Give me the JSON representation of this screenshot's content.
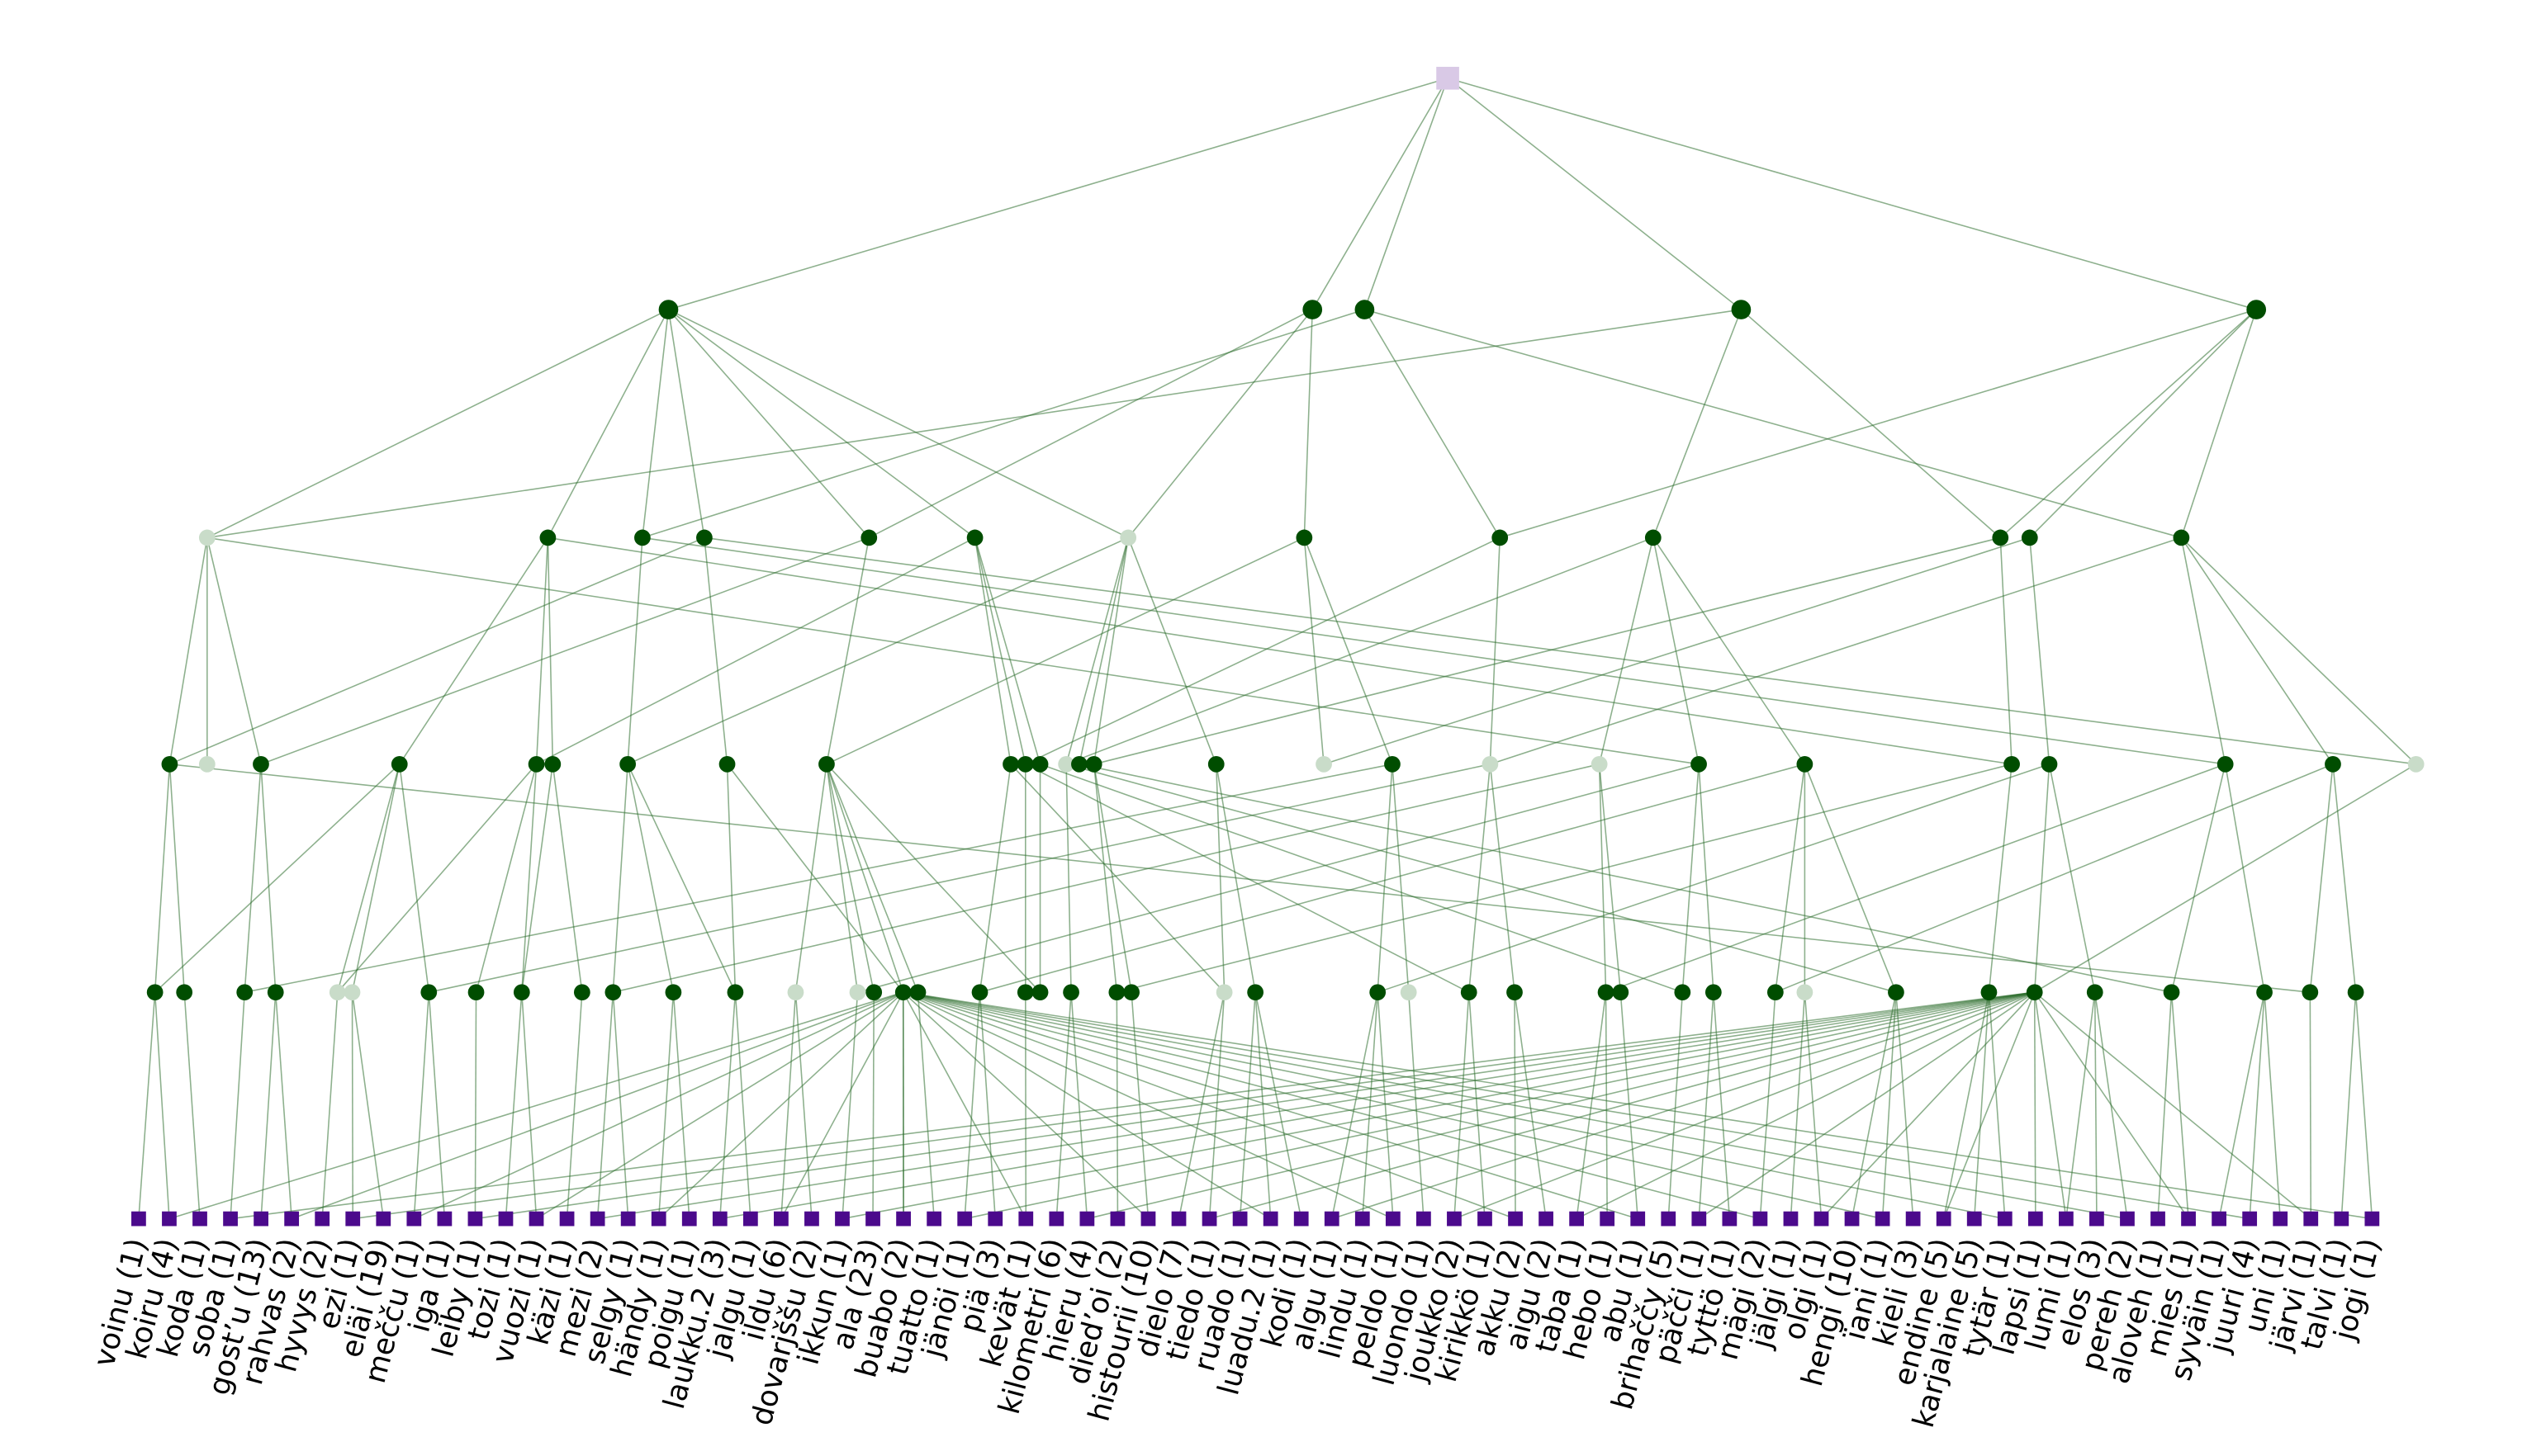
{
  "leaves": [
    "voinu (1)",
    "koiru (4)",
    "koda (1)",
    "soba (1)",
    "gost’u (13)",
    "rahvas (2)",
    "hyvys (2)",
    "ezi (1)",
    "eläi (19)",
    "mečču (1)",
    "iga (1)",
    "leiby (1)",
    "tozi (1)",
    "vuozi (1)",
    "käzi (1)",
    "mezi (2)",
    "selgy (1)",
    "händy (1)",
    "poigu (1)",
    "laukku.2 (3)",
    "jalgu (1)",
    "ildu (6)",
    "dovarjššu (2)",
    "ikkun (1)",
    "ala (23)",
    "buabo (2)",
    "tuatto (1)",
    "jänöi (1)",
    "piä (3)",
    "kevät (1)",
    "kilometri (6)",
    "hieru (4)",
    "died’oi (2)",
    "histourii (10)",
    "dielo (7)",
    "tiedo (1)",
    "ruado (1)",
    "luadu.2 (1)",
    "kodi (1)",
    "algu (1)",
    "lindu (1)",
    "peldo (1)",
    "luondo (1)",
    "joukko (2)",
    "kirikkö (1)",
    "akku (2)",
    "aigu (2)",
    "taba (1)",
    "hebo (1)",
    "abu (1)",
    "brihaččy (5)",
    "päčči (1)",
    "tyttö (1)",
    "mägi (2)",
    "jälgi (1)",
    "olgi (1)",
    "hengi (10)",
    "ïani (1)",
    "kieli (3)",
    "endine (5)",
    "karjalaine (5)",
    "tytär (1)",
    "lapsi (1)",
    "lumi (1)",
    "elos (3)",
    "pereh (2)",
    "aloveh (1)",
    "mies (1)",
    "syväin (1)",
    "juuri (4)",
    "uni (1)",
    "järvi (1)",
    "talvi (1)",
    "jogi (1)"
  ]
}
